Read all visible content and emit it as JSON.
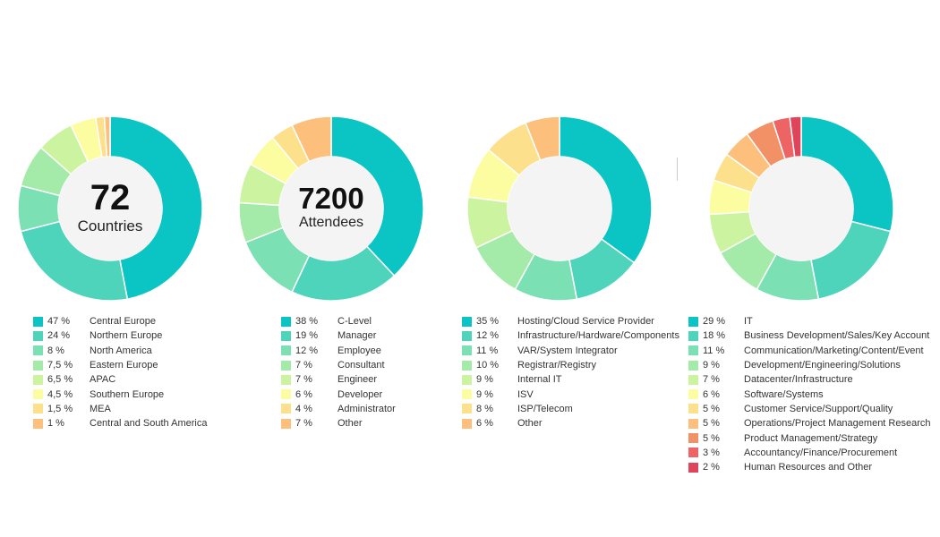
{
  "colors": {
    "center_fill": "#f4f4f4",
    "palette": [
      "#0bc4c4",
      "#4fd4bc",
      "#7be0b4",
      "#a4eaa8",
      "#ccf4a0",
      "#fcfca0",
      "#fce08c",
      "#fcc07c",
      "#f29066",
      "#ee6464",
      "#e0445a"
    ]
  },
  "chart_data": [
    {
      "type": "pie",
      "center_number": "72",
      "center_label": "Countries",
      "series": [
        {
          "label": "Central Europe",
          "pct_label": "47 %",
          "value": 47,
          "color": "#0bc4c4"
        },
        {
          "label": "Northern Europe",
          "pct_label": "24 %",
          "value": 24,
          "color": "#4fd4bc"
        },
        {
          "label": "North America",
          "pct_label": "8 %",
          "value": 8,
          "color": "#7be0b4"
        },
        {
          "label": "Eastern Europe",
          "pct_label": "7,5 %",
          "value": 7.5,
          "color": "#a4eaa8"
        },
        {
          "label": "APAC",
          "pct_label": "6,5 %",
          "value": 6.5,
          "color": "#ccf4a0"
        },
        {
          "label": "Southern Europe",
          "pct_label": "4,5 %",
          "value": 4.5,
          "color": "#fcfca0"
        },
        {
          "label": "MEA",
          "pct_label": "1,5 %",
          "value": 1.5,
          "color": "#fce08c"
        },
        {
          "label": "Central and South America",
          "pct_label": "1 %",
          "value": 1,
          "color": "#fcc07c"
        }
      ]
    },
    {
      "type": "pie",
      "center_number": "7200",
      "center_label": "Attendees",
      "series": [
        {
          "label": "C-Level",
          "pct_label": "38 %",
          "value": 38,
          "color": "#0bc4c4"
        },
        {
          "label": "Manager",
          "pct_label": "19 %",
          "value": 19,
          "color": "#4fd4bc"
        },
        {
          "label": "Employee",
          "pct_label": "12 %",
          "value": 12,
          "color": "#7be0b4"
        },
        {
          "label": "Consultant",
          "pct_label": "7 %",
          "value": 7,
          "color": "#a4eaa8"
        },
        {
          "label": "Engineer",
          "pct_label": "7 %",
          "value": 7,
          "color": "#ccf4a0"
        },
        {
          "label": "Developer",
          "pct_label": "6 %",
          "value": 6,
          "color": "#fcfca0"
        },
        {
          "label": "Administrator",
          "pct_label": "4 %",
          "value": 4,
          "color": "#fce08c"
        },
        {
          "label": "Other",
          "pct_label": "7 %",
          "value": 7,
          "color": "#fcc07c"
        }
      ]
    },
    {
      "type": "pie",
      "center_number": "",
      "center_label": "",
      "series": [
        {
          "label": "Hosting/Cloud Service Provider",
          "pct_label": "35 %",
          "value": 35,
          "color": "#0bc4c4"
        },
        {
          "label": "Infrastructure/Hardware/Components",
          "pct_label": "12 %",
          "value": 12,
          "color": "#4fd4bc"
        },
        {
          "label": "VAR/System Integrator",
          "pct_label": "11 %",
          "value": 11,
          "color": "#7be0b4"
        },
        {
          "label": "Registrar/Registry",
          "pct_label": "10 %",
          "value": 10,
          "color": "#a4eaa8"
        },
        {
          "label": "Internal IT",
          "pct_label": "9 %",
          "value": 9,
          "color": "#ccf4a0"
        },
        {
          "label": "ISV",
          "pct_label": "9 %",
          "value": 9,
          "color": "#fcfca0"
        },
        {
          "label": "ISP/Telecom",
          "pct_label": "8 %",
          "value": 8,
          "color": "#fce08c"
        },
        {
          "label": "Other",
          "pct_label": "6 %",
          "value": 6,
          "color": "#fcc07c"
        }
      ]
    },
    {
      "type": "pie",
      "center_number": "",
      "center_label": "",
      "series": [
        {
          "label": "IT",
          "pct_label": "29 %",
          "value": 29,
          "color": "#0bc4c4"
        },
        {
          "label": "Business Development/Sales/Key Account",
          "pct_label": "18 %",
          "value": 18,
          "color": "#4fd4bc"
        },
        {
          "label": "Communication/Marketing/Content/Event",
          "pct_label": "11 %",
          "value": 11,
          "color": "#7be0b4"
        },
        {
          "label": "Development/Engineering/Solutions",
          "pct_label": "9 %",
          "value": 9,
          "color": "#a4eaa8"
        },
        {
          "label": "Datacenter/Infrastructure",
          "pct_label": "7 %",
          "value": 7,
          "color": "#ccf4a0"
        },
        {
          "label": "Software/Systems",
          "pct_label": "6 %",
          "value": 6,
          "color": "#fcfca0"
        },
        {
          "label": "Customer Service/Support/Quality",
          "pct_label": "5 %",
          "value": 5,
          "color": "#fce08c"
        },
        {
          "label": "Operations/Project Management Research",
          "pct_label": "5 %",
          "value": 5,
          "color": "#fcc07c"
        },
        {
          "label": "Product Management/Strategy",
          "pct_label": "5 %",
          "value": 5,
          "color": "#f29066"
        },
        {
          "label": "Accountancy/Finance/Procurement",
          "pct_label": "3 %",
          "value": 3,
          "color": "#ee6464"
        },
        {
          "label": "Human Resources and Other",
          "pct_label": "2 %",
          "value": 2,
          "color": "#e0445a"
        }
      ]
    }
  ]
}
